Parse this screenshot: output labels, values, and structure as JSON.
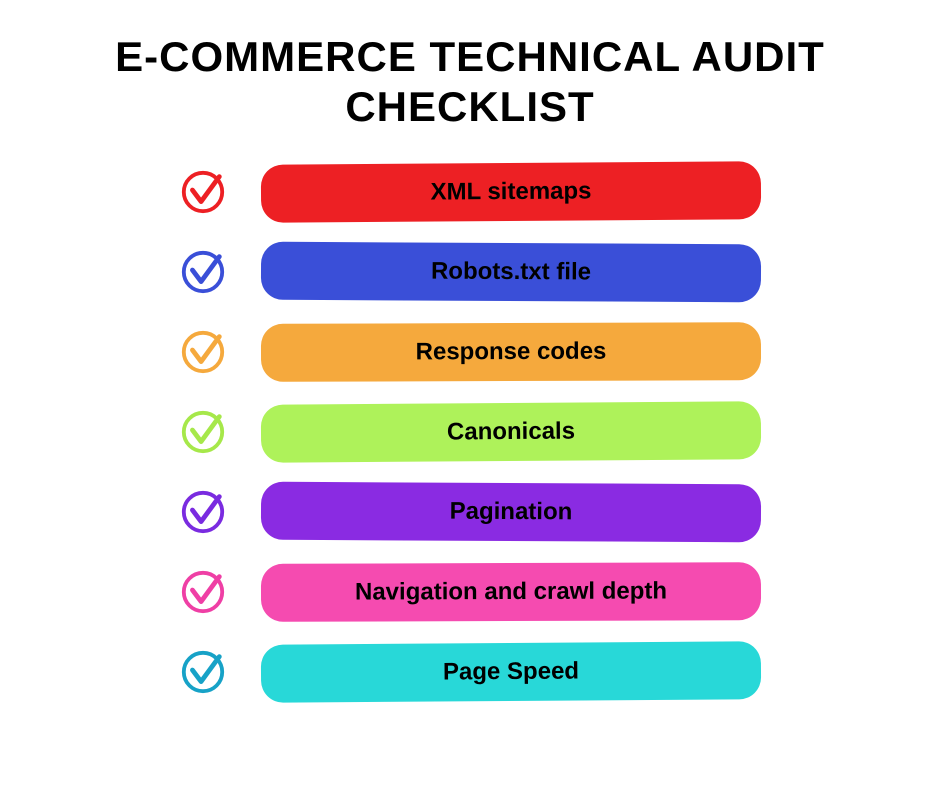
{
  "title": "E-COMMERCE TECHNICAL AUDIT CHECKLIST",
  "title_fontsize": 42,
  "title_color": "#000000",
  "background_color": "#ffffff",
  "check_icon_size": 48,
  "check_stroke_width": 4,
  "pill_width": 500,
  "pill_height": 58,
  "pill_border_radius": 22,
  "pill_label_fontsize": 24,
  "row_gap": 22,
  "items": [
    {
      "label": "XML sitemaps",
      "check_color": "#ed2024",
      "pill_color": "#ed2024",
      "text_color": "#000000",
      "rot": "rot-a"
    },
    {
      "label": "Robots.txt file",
      "check_color": "#3a4fd8",
      "pill_color": "#3a4fd8",
      "text_color": "#000000",
      "rot": "rot-b"
    },
    {
      "label": "Response codes",
      "check_color": "#f5a93d",
      "pill_color": "#f5a93d",
      "text_color": "#000000",
      "rot": "rot-c"
    },
    {
      "label": "Canonicals",
      "check_color": "#a6e84a",
      "pill_color": "#aef25a",
      "text_color": "#000000",
      "rot": "rot-a"
    },
    {
      "label": "Pagination",
      "check_color": "#7a2be0",
      "pill_color": "#8a2be2",
      "text_color": "#000000",
      "rot": "rot-b"
    },
    {
      "label": "Navigation and crawl depth",
      "check_color": "#ef3fa5",
      "pill_color": "#f54bb0",
      "text_color": "#000000",
      "rot": "rot-c"
    },
    {
      "label": "Page Speed",
      "check_color": "#17a2c7",
      "pill_color": "#28d8d8",
      "text_color": "#000000",
      "rot": "rot-a"
    }
  ]
}
